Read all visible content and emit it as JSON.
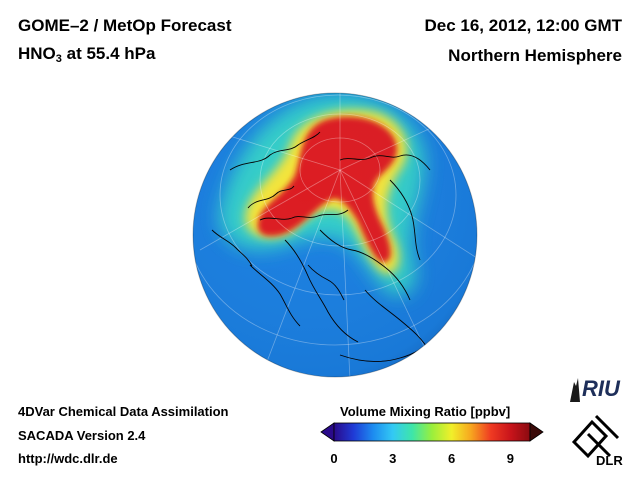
{
  "header": {
    "title_line1": "GOME–2 / MetOp Forecast",
    "species_main": "HNO",
    "species_sub": "3",
    "level": "at 55.4 hPa",
    "date": "Dec 16, 2012, 12:00 GMT",
    "hemisphere": "Northern Hemisphere"
  },
  "footer": {
    "line1": "4DVar Chemical Data Assimilation",
    "line2": "SACADA Version 2.4",
    "line3": "http://wdc.dlr.de"
  },
  "colorbar": {
    "title": "Volume Mixing Ratio [ppbv]",
    "min": 0,
    "max": 10,
    "ticks": [
      "0",
      "3",
      "6",
      "9"
    ],
    "colors": [
      "#2a0a8a",
      "#1f3bd6",
      "#1d8cf0",
      "#33c9f4",
      "#3ee6a8",
      "#9aef3c",
      "#f1ef2a",
      "#f7a51f",
      "#ef3a22",
      "#c9141b",
      "#8a0a10"
    ]
  },
  "map_legend": {
    "field_colors": {
      "background": "#1a7fe0",
      "moderate": "#34d2c8",
      "high": "#f3e43a",
      "peak": "#dc1e22"
    }
  },
  "logos": {
    "riu": "RIU",
    "dlr": "DLR"
  }
}
